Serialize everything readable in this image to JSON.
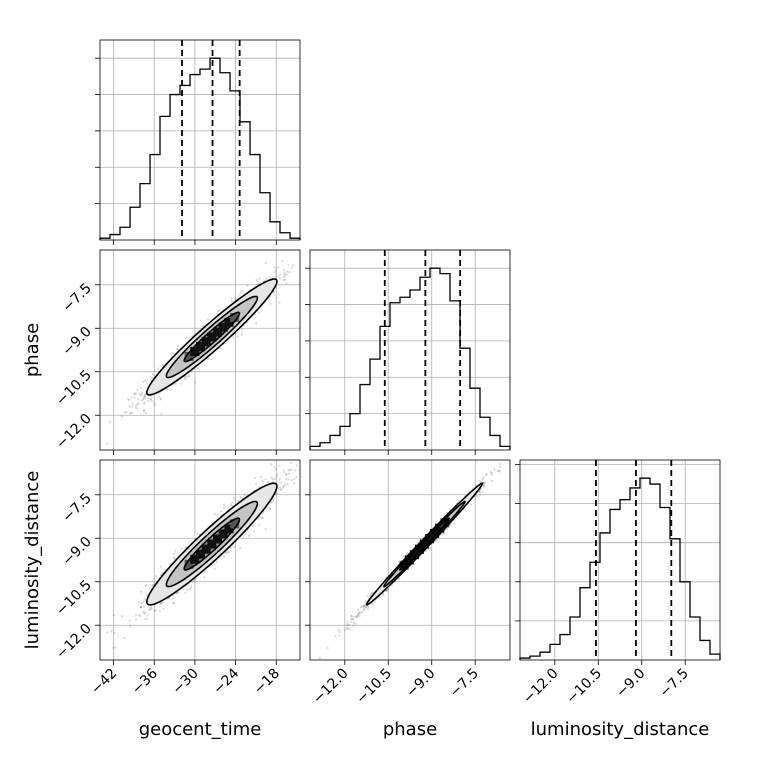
{
  "chart_data": {
    "type": "corner",
    "parameters": [
      {
        "name": "geocent_time",
        "range": [
          -44.0,
          -14.5
        ],
        "ticks": [
          -42,
          -36,
          -30,
          -24,
          -18
        ],
        "tick_labels": [
          "−42",
          "−36",
          "−30",
          "−24",
          "−18"
        ]
      },
      {
        "name": "phase",
        "range": [
          -13.2,
          -6.3
        ],
        "ticks": [
          -12.0,
          -10.5,
          -9.0,
          -7.5
        ],
        "tick_labels": [
          "−12.0",
          "−10.5",
          "−9.0",
          "−7.5"
        ]
      },
      {
        "name": "luminosity_distance",
        "range": [
          -13.2,
          -6.3
        ],
        "ticks": [
          -12.0,
          -10.5,
          -9.0,
          -7.5
        ],
        "tick_labels": [
          "−12.0",
          "−10.5",
          "−9.0",
          "−7.5"
        ]
      }
    ],
    "histograms": [
      {
        "parameter": "geocent_time",
        "bin_edges": [
          -44.0,
          -42.52,
          -41.05,
          -39.57,
          -38.1,
          -36.62,
          -35.15,
          -33.67,
          -32.2,
          -30.72,
          -29.25,
          -27.77,
          -26.3,
          -24.82,
          -23.35,
          -21.87,
          -20.4,
          -18.92,
          -17.45,
          -15.97,
          -14.5
        ],
        "counts": [
          1,
          3,
          7,
          18,
          31,
          47,
          68,
          80,
          85,
          91,
          94,
          100,
          92,
          82,
          65,
          47,
          26,
          10,
          4,
          1
        ],
        "quantiles": [
          -31.9,
          -27.4,
          -23.4
        ]
      },
      {
        "parameter": "phase",
        "bin_edges": [
          -13.2,
          -12.855,
          -12.51,
          -12.165,
          -11.82,
          -11.475,
          -11.13,
          -10.785,
          -10.44,
          -10.095,
          -9.75,
          -9.405,
          -9.06,
          -8.715,
          -8.37,
          -8.025,
          -7.68,
          -7.335,
          -6.99,
          -6.645,
          -6.3
        ],
        "counts": [
          2,
          4,
          8,
          13,
          20,
          36,
          50,
          68,
          81,
          84,
          88,
          95,
          100,
          97,
          82,
          56,
          34,
          18,
          8,
          2
        ],
        "quantiles": [
          -10.62,
          -9.22,
          -8.02
        ]
      },
      {
        "parameter": "luminosity_distance",
        "bin_edges": [
          -13.2,
          -12.855,
          -12.51,
          -12.165,
          -11.82,
          -11.475,
          -11.13,
          -10.785,
          -10.44,
          -10.095,
          -9.75,
          -9.405,
          -9.06,
          -8.715,
          -8.37,
          -8.025,
          -7.68,
          -7.335,
          -6.99,
          -6.645,
          -6.3
        ],
        "counts": [
          1,
          2,
          4,
          8,
          13,
          22,
          37,
          50,
          65,
          77,
          82,
          88,
          93,
          90,
          78,
          62,
          40,
          22,
          10,
          3
        ],
        "quantiles": [
          -10.58,
          -9.2,
          -7.98
        ]
      }
    ],
    "joint": [
      {
        "x": "geocent_time",
        "y": "phase",
        "mean_x": -27.5,
        "mean_y": -9.3,
        "sd_x": 4.8,
        "sd_y": 1.0,
        "rho": 0.96
      },
      {
        "x": "geocent_time",
        "y": "luminosity_distance",
        "mean_x": -27.5,
        "mean_y": -9.2,
        "sd_x": 4.8,
        "sd_y": 1.05,
        "rho": 0.95
      },
      {
        "x": "phase",
        "y": "luminosity_distance",
        "mean_x": -9.25,
        "mean_y": -9.2,
        "sd_x": 1.0,
        "sd_y": 1.05,
        "rho": 0.995
      }
    ],
    "grid": true
  }
}
